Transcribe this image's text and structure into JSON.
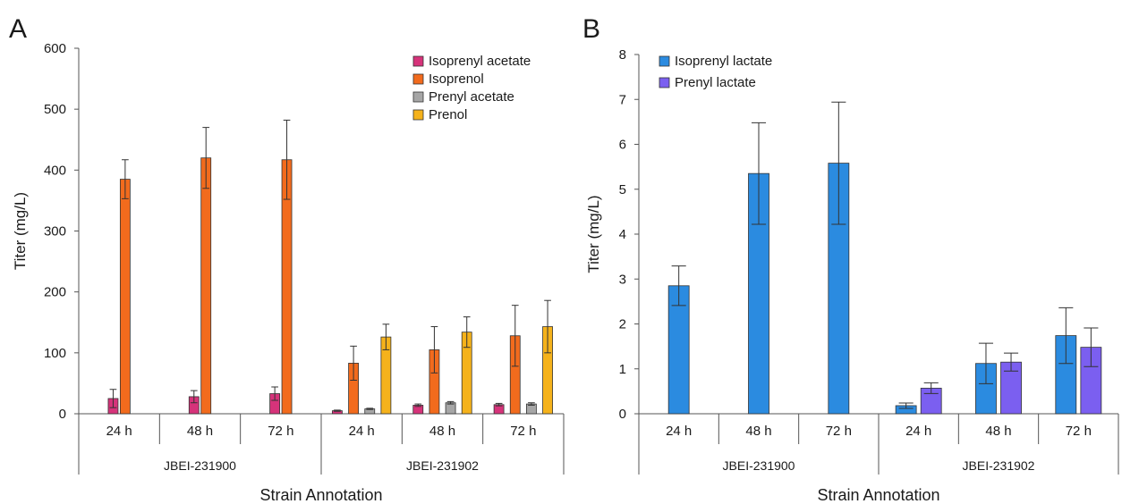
{
  "chart_data": [
    {
      "panel": "A",
      "type": "bar",
      "ylabel": "Titer (mg/L)",
      "xlabel": "Strain  Annotation",
      "ylim": [
        0,
        600
      ],
      "yticks": [
        0,
        100,
        200,
        300,
        400,
        500,
        600
      ],
      "groups": [
        {
          "name": "JBEI-231900",
          "categories": [
            "24 h",
            "48 h",
            "72 h"
          ]
        },
        {
          "name": "JBEI-231902",
          "categories": [
            "24 h",
            "48 h",
            "72 h"
          ]
        }
      ],
      "legend_position": "top-right",
      "series": [
        {
          "name": "Isoprenyl acetate",
          "color": "#d6337a",
          "values": [
            25,
            28,
            33,
            5,
            14,
            15
          ],
          "errors": [
            15,
            10,
            11,
            1,
            2,
            2
          ]
        },
        {
          "name": "Isoprenol",
          "color": "#f26b1d",
          "values": [
            385,
            420,
            417,
            83,
            105,
            128
          ],
          "errors": [
            32,
            50,
            65,
            28,
            38,
            50
          ]
        },
        {
          "name": "Prenyl acetate",
          "color": "#a6a6a6",
          "values": [
            null,
            null,
            null,
            8,
            18,
            16
          ],
          "errors": [
            null,
            null,
            null,
            1,
            2,
            2
          ]
        },
        {
          "name": "Prenol",
          "color": "#f5b21b",
          "values": [
            null,
            null,
            null,
            126,
            134,
            143
          ],
          "errors": [
            null,
            null,
            null,
            21,
            25,
            43
          ]
        }
      ]
    },
    {
      "panel": "B",
      "type": "bar",
      "ylabel": "Titer (mg/L)",
      "xlabel": "Strain  Annotation",
      "ylim": [
        0,
        8
      ],
      "yticks": [
        0,
        1,
        2,
        3,
        4,
        5,
        6,
        7,
        8
      ],
      "groups": [
        {
          "name": "JBEI-231900",
          "categories": [
            "24 h",
            "48 h",
            "72 h"
          ]
        },
        {
          "name": "JBEI-231902",
          "categories": [
            "24 h",
            "48 h",
            "72 h"
          ]
        }
      ],
      "legend_position": "top-left",
      "series": [
        {
          "name": "Isoprenyl lactate",
          "color": "#2b8be0",
          "values": [
            2.85,
            5.35,
            5.58,
            0.18,
            1.12,
            1.74
          ],
          "errors": [
            0.44,
            1.13,
            1.36,
            0.06,
            0.45,
            0.62
          ]
        },
        {
          "name": "Prenyl lactate",
          "color": "#7b5ff0",
          "values": [
            null,
            null,
            null,
            0.57,
            1.15,
            1.48
          ],
          "errors": [
            null,
            null,
            null,
            0.12,
            0.2,
            0.43
          ]
        }
      ]
    }
  ]
}
